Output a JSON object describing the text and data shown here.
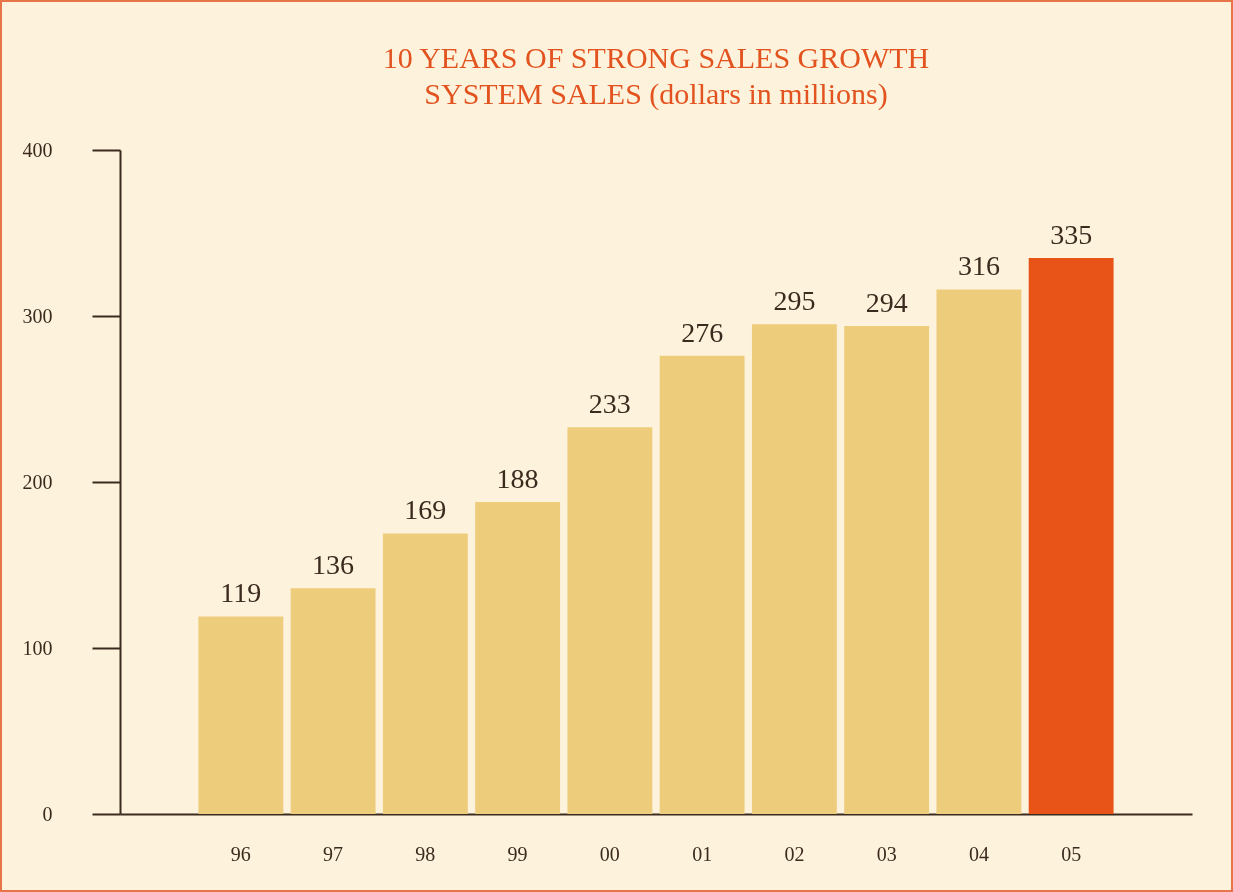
{
  "chart_data": {
    "type": "bar",
    "title": "10 YEARS OF STRONG SALES GROWTH",
    "subtitle": "SYSTEM SALES (dollars in millions)",
    "categories": [
      "96",
      "97",
      "98",
      "99",
      "00",
      "01",
      "02",
      "03",
      "04",
      "05"
    ],
    "values": [
      119,
      136,
      169,
      188,
      233,
      276,
      295,
      294,
      316,
      335
    ],
    "colors": [
      "#edcc7c",
      "#edcc7c",
      "#edcc7c",
      "#edcc7c",
      "#edcc7c",
      "#edcc7c",
      "#edcc7c",
      "#edcc7c",
      "#edcc7c",
      "#e85318"
    ],
    "ylim": [
      0,
      400
    ],
    "yticks": [
      0,
      100,
      200,
      300,
      400
    ],
    "grid": false,
    "data_labels": true
  }
}
